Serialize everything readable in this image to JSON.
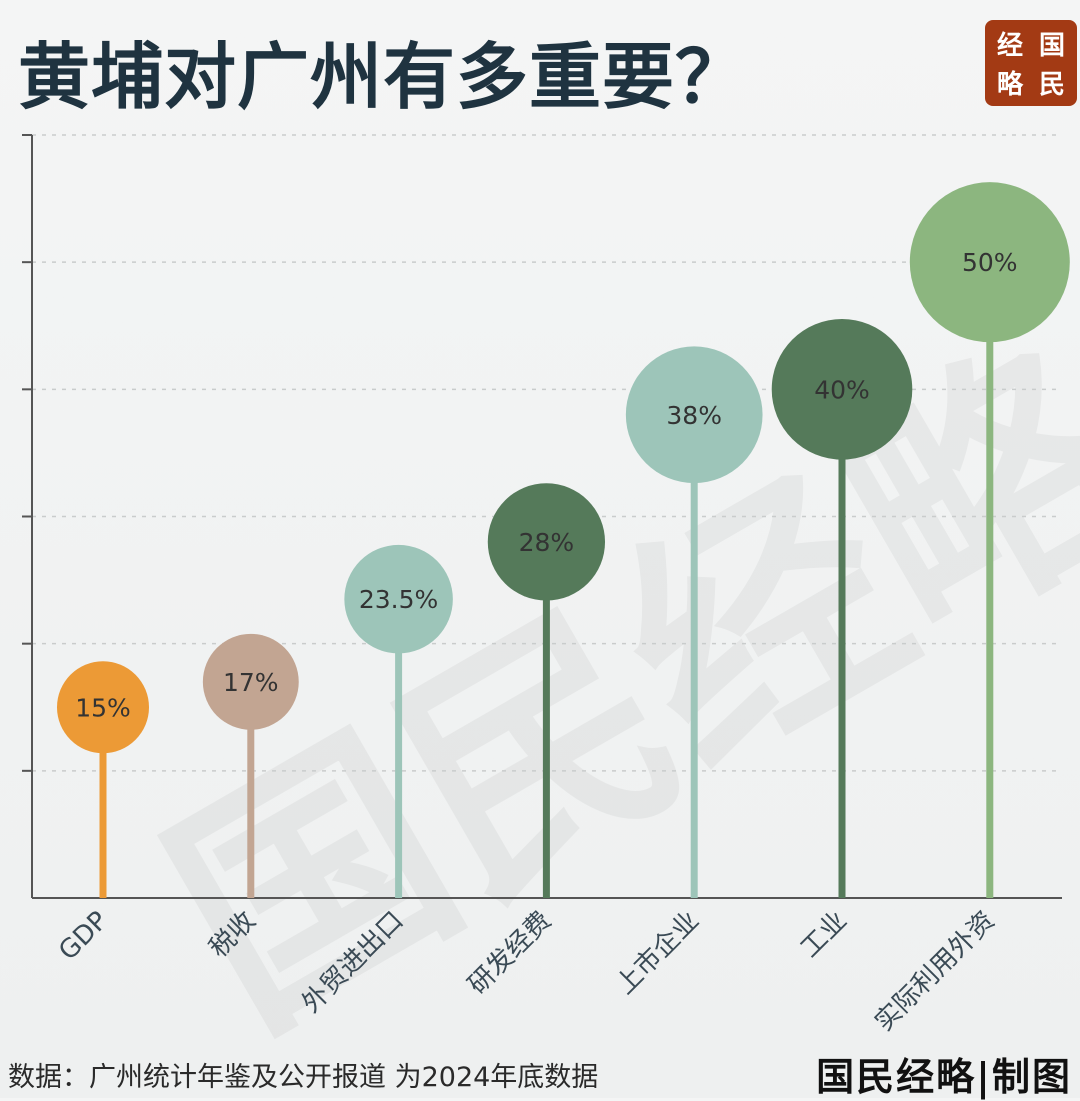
{
  "title": "黄埔对广州有多重要？",
  "logo": {
    "chars": [
      "经",
      "国",
      "略",
      "民"
    ]
  },
  "watermark": "国民经略",
  "source_text": "数据：广州统计年鉴及公开报道 为2024年底数据",
  "credit_text": "国民经略|制图",
  "chart_data": {
    "type": "lollipop",
    "title": "黄埔对广州有多重要？",
    "xlabel": "",
    "ylabel": "",
    "ylim": [
      0,
      60
    ],
    "grid": true,
    "categories": [
      "GDP",
      "税收",
      "外贸进出口",
      "研发经费",
      "上市企业",
      "工业",
      "实际利用外资"
    ],
    "values": [
      15,
      17,
      23.5,
      28,
      38,
      40,
      50
    ],
    "value_labels": [
      "15%",
      "17%",
      "23.5%",
      "28%",
      "38%",
      "40%",
      "50%"
    ],
    "colors": [
      "#ec9a36",
      "#c2a592",
      "#9dc5b9",
      "#557a5a",
      "#9dc5b9",
      "#557a5a",
      "#8cb67f"
    ]
  }
}
